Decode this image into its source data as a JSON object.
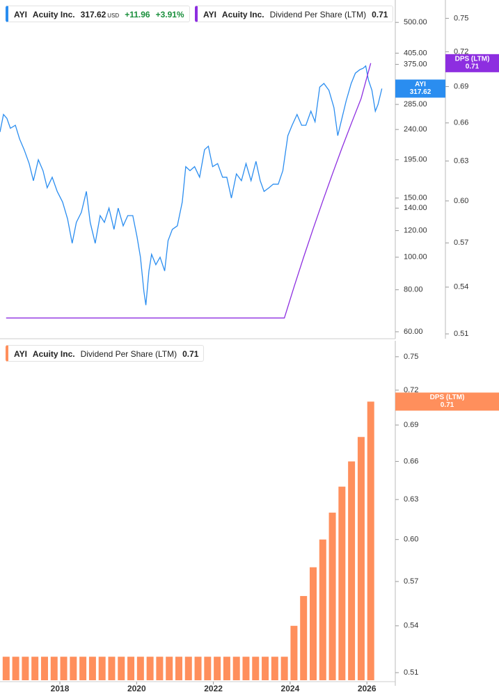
{
  "chart_data": [
    {
      "type": "line",
      "symbol": "AYI",
      "company": "Acuity Inc.",
      "currency": "USD",
      "change": "+11.96",
      "change_percent": "+3.91%",
      "xlim": [
        2016.44,
        2026.74
      ],
      "ylim": [
        57.2,
        583
      ],
      "y2lim": [
        0.507,
        0.767
      ],
      "log_scale": true,
      "grid": false,
      "yticks": [
        {
          "value": 60,
          "label": "60.00"
        },
        {
          "value": 80,
          "label": "80.00"
        },
        {
          "value": 100,
          "label": "100.00"
        },
        {
          "value": 120,
          "label": "120.00"
        },
        {
          "value": 140,
          "label": "140.00"
        },
        {
          "value": 150,
          "label": "150.00"
        },
        {
          "value": 195,
          "label": "195.00"
        },
        {
          "value": 240,
          "label": "240.00"
        },
        {
          "value": 285,
          "label": "285.00"
        },
        {
          "value": 375,
          "label": "375.00"
        },
        {
          "value": 405,
          "label": "405.00"
        },
        {
          "value": 500,
          "label": "500.00"
        }
      ],
      "y2ticks": [
        0.51,
        0.54,
        0.57,
        {
          "value": 0.6,
          "label": "0.60"
        },
        0.63,
        0.66,
        0.69,
        0.72,
        0.75
      ],
      "series": [
        {
          "name": "AYI",
          "color": "#2a8df0",
          "x": [
            2016.44,
            2016.53,
            2016.62,
            2016.71,
            2016.84,
            2016.95,
            2017.07,
            2017.2,
            2017.31,
            2017.44,
            2017.56,
            2017.67,
            2017.8,
            2017.93,
            2018.07,
            2018.2,
            2018.32,
            2018.43,
            2018.56,
            2018.69,
            2018.79,
            2018.92,
            2019.05,
            2019.16,
            2019.28,
            2019.41,
            2019.52,
            2019.65,
            2019.77,
            2019.9,
            2020.01,
            2020.1,
            2020.19,
            2020.24,
            2020.32,
            2020.39,
            2020.5,
            2020.61,
            2020.73,
            2020.82,
            2020.93,
            2021.06,
            2021.19,
            2021.28,
            2021.39,
            2021.51,
            2021.64,
            2021.77,
            2021.87,
            2021.98,
            2022.11,
            2022.24,
            2022.35,
            2022.47,
            2022.6,
            2022.73,
            2022.85,
            2022.98,
            2023.11,
            2023.22,
            2023.32,
            2023.45,
            2023.56,
            2023.69,
            2023.81,
            2023.94,
            2024.05,
            2024.18,
            2024.3,
            2024.41,
            2024.54,
            2024.65,
            2024.77,
            2024.88,
            2025.01,
            2025.14,
            2025.24,
            2025.35,
            2025.46,
            2025.59,
            2025.7,
            2025.82,
            2025.9,
            2025.97,
            2026.04,
            2026.13,
            2026.22,
            2026.29,
            2026.39
          ],
          "values": [
            236,
            266,
            259,
            242,
            247,
            225,
            209,
            190,
            169,
            195,
            181,
            161,
            173,
            157,
            146,
            130,
            110,
            127,
            136,
            157,
            127,
            110,
            133,
            127,
            140,
            121,
            140,
            124,
            133,
            133,
            115,
            100,
            79,
            72,
            91,
            102,
            95,
            100,
            91,
            112,
            121,
            124,
            146,
            186,
            181,
            186,
            173,
            209,
            214,
            186,
            190,
            173,
            173,
            150,
            177,
            169,
            190,
            169,
            193,
            169,
            157,
            161,
            165,
            165,
            181,
            230,
            247,
            266,
            247,
            247,
            272,
            253,
            321,
            329,
            314,
            279,
            230,
            259,
            292,
            329,
            353,
            362,
            365,
            371,
            337,
            314,
            272,
            285,
            317.62
          ]
        },
        {
          "name": "Dividend Per Share (LTM)",
          "short_name": "DPS (LTM)",
          "color": "#8d2ee0",
          "axis": "y2",
          "x": [
            2016.6,
            2016.85,
            2017.1,
            2017.35,
            2017.6,
            2017.85,
            2018.1,
            2018.35,
            2018.6,
            2018.85,
            2019.1,
            2019.35,
            2019.6,
            2019.85,
            2020.1,
            2020.35,
            2020.6,
            2020.85,
            2021.1,
            2021.35,
            2021.6,
            2021.85,
            2022.1,
            2022.35,
            2022.6,
            2022.85,
            2023.1,
            2023.35,
            2023.6,
            2023.85,
            2024.1,
            2024.35,
            2024.6,
            2024.85,
            2025.1,
            2025.35,
            2025.6,
            2025.85,
            2026.1
          ],
          "values": [
            0.52,
            0.52,
            0.52,
            0.52,
            0.52,
            0.52,
            0.52,
            0.52,
            0.52,
            0.52,
            0.52,
            0.52,
            0.52,
            0.52,
            0.52,
            0.52,
            0.52,
            0.52,
            0.52,
            0.52,
            0.52,
            0.52,
            0.52,
            0.52,
            0.52,
            0.52,
            0.52,
            0.52,
            0.52,
            0.52,
            0.54,
            0.56,
            0.58,
            0.6,
            0.62,
            0.64,
            0.66,
            0.68,
            0.71
          ]
        }
      ]
    },
    {
      "type": "bar",
      "symbol": "AYI",
      "company": "Acuity Inc.",
      "name": "Dividend Per Share (LTM)",
      "short_name": "DPS (LTM)",
      "color": "#ff8f5c",
      "xlim": [
        2016.44,
        2026.74
      ],
      "xticks": [
        2018,
        2020,
        2022,
        2024,
        2026
      ],
      "ylim": [
        0.5053,
        0.7647
      ],
      "log_scale": true,
      "yticks": [
        0.51,
        0.54,
        0.57,
        {
          "value": 0.6,
          "label": "0.60"
        },
        0.63,
        0.66,
        0.69,
        0.72,
        0.75
      ],
      "x": [
        2016.6,
        2016.85,
        2017.1,
        2017.35,
        2017.6,
        2017.85,
        2018.1,
        2018.35,
        2018.6,
        2018.85,
        2019.1,
        2019.35,
        2019.6,
        2019.85,
        2020.1,
        2020.35,
        2020.6,
        2020.85,
        2021.1,
        2021.35,
        2021.6,
        2021.85,
        2022.1,
        2022.35,
        2022.6,
        2022.85,
        2023.1,
        2023.35,
        2023.6,
        2023.85,
        2024.1,
        2024.35,
        2024.6,
        2024.85,
        2025.1,
        2025.35,
        2025.6,
        2025.85,
        2026.1
      ],
      "values": [
        0.52,
        0.52,
        0.52,
        0.52,
        0.52,
        0.52,
        0.52,
        0.52,
        0.52,
        0.52,
        0.52,
        0.52,
        0.52,
        0.52,
        0.52,
        0.52,
        0.52,
        0.52,
        0.52,
        0.52,
        0.52,
        0.52,
        0.52,
        0.52,
        0.52,
        0.52,
        0.52,
        0.52,
        0.52,
        0.52,
        0.54,
        0.56,
        0.58,
        0.6,
        0.62,
        0.64,
        0.66,
        0.68,
        0.71
      ]
    }
  ]
}
